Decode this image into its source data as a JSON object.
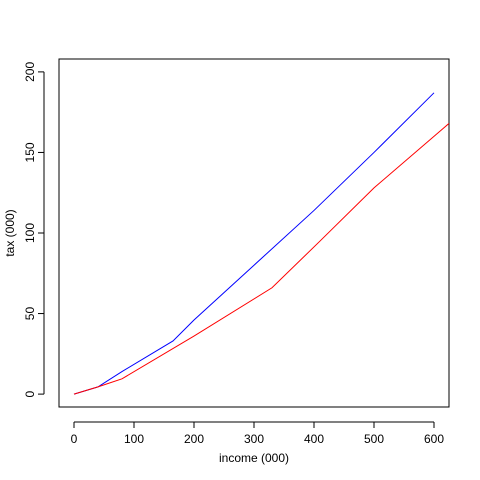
{
  "chart_data": {
    "type": "line",
    "title": "",
    "xlabel": "income (000)",
    "ylabel": "tax (000)",
    "xlim": [
      -25,
      625
    ],
    "ylim": [
      -8,
      208
    ],
    "x_ticks": [
      0,
      100,
      200,
      300,
      400,
      500,
      600
    ],
    "y_ticks": [
      0,
      50,
      100,
      150,
      200
    ],
    "grid": false,
    "legend": "none",
    "series": [
      {
        "color": "#0000FF",
        "x": [
          0,
          40,
          80,
          165,
          200,
          300,
          400,
          500,
          600
        ],
        "y": [
          0,
          4.5,
          14,
          33,
          46,
          80,
          114,
          150,
          187
        ]
      },
      {
        "color": "#FF0000",
        "x": [
          0,
          40,
          80,
          200,
          330,
          410,
          500,
          625
        ],
        "y": [
          0,
          4.5,
          9.5,
          36,
          66,
          95,
          128,
          168
        ]
      }
    ]
  }
}
